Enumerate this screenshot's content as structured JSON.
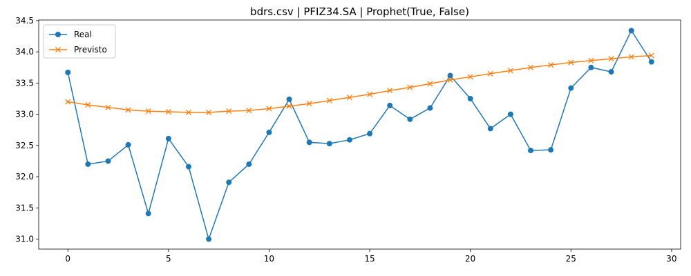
{
  "chart_data": {
    "type": "line",
    "title": "bdrs.csv | PFIZ34.SA | Prophet(True, False)",
    "xlabel": "",
    "ylabel": "",
    "xlim": [
      -1.45,
      30.45
    ],
    "ylim": [
      30.84,
      34.51
    ],
    "xticks": [
      0,
      5,
      10,
      15,
      20,
      25,
      30
    ],
    "yticks": [
      31.0,
      31.5,
      32.0,
      32.5,
      33.0,
      33.5,
      34.0,
      34.5
    ],
    "ytick_labels": [
      "31.0",
      "31.5",
      "32.0",
      "32.5",
      "33.0",
      "33.5",
      "34.0",
      "34.5"
    ],
    "grid": false,
    "legend_position": "top-left",
    "x": [
      0,
      1,
      2,
      3,
      4,
      5,
      6,
      7,
      8,
      9,
      10,
      11,
      12,
      13,
      14,
      15,
      16,
      17,
      18,
      19,
      20,
      21,
      22,
      23,
      24,
      25,
      26,
      27,
      28,
      29
    ],
    "series": [
      {
        "name": "Real",
        "color": "#1f77b4",
        "marker": "circle",
        "values": [
          33.67,
          32.2,
          32.25,
          32.51,
          31.41,
          32.61,
          32.16,
          31.0,
          31.91,
          32.2,
          32.71,
          33.24,
          32.55,
          32.53,
          32.59,
          32.69,
          33.14,
          32.92,
          33.1,
          33.62,
          33.25,
          32.77,
          33.0,
          32.42,
          32.43,
          33.42,
          33.75,
          33.68,
          34.34,
          33.84
        ]
      },
      {
        "name": "Previsto",
        "color": "#ff7f0e",
        "marker": "x",
        "values": [
          33.2,
          33.15,
          33.11,
          33.07,
          33.05,
          33.04,
          33.03,
          33.03,
          33.05,
          33.06,
          33.09,
          33.13,
          33.17,
          33.22,
          33.27,
          33.32,
          33.38,
          33.43,
          33.49,
          33.55,
          33.6,
          33.65,
          33.7,
          33.75,
          33.79,
          33.83,
          33.86,
          33.89,
          33.92,
          33.94
        ]
      }
    ]
  }
}
